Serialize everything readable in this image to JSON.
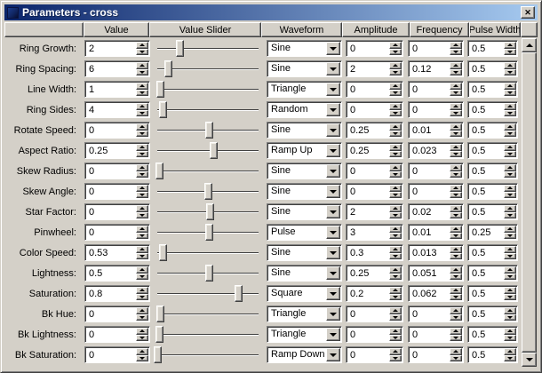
{
  "window": {
    "title": "Parameters - cross",
    "close_label": "✕"
  },
  "columns": [
    "",
    "Value",
    "Value Slider",
    "Waveform",
    "Amplitude",
    "Frequency",
    "Pulse Width",
    ""
  ],
  "rows": [
    {
      "label": "Ring Growth:",
      "value": "2",
      "slider_pct": 23,
      "waveform": "Sine",
      "amplitude": "0",
      "frequency": "0",
      "pulse_width": "0.5"
    },
    {
      "label": "Ring Spacing:",
      "value": "6",
      "slider_pct": 12,
      "waveform": "Sine",
      "amplitude": "2",
      "frequency": "0.12",
      "pulse_width": "0.5"
    },
    {
      "label": "Line Width:",
      "value": "1",
      "slider_pct": 4,
      "waveform": "Triangle",
      "amplitude": "0",
      "frequency": "0",
      "pulse_width": "0.5"
    },
    {
      "label": "Ring Sides:",
      "value": "4",
      "slider_pct": 7,
      "waveform": "Random",
      "amplitude": "0",
      "frequency": "0",
      "pulse_width": "0.5"
    },
    {
      "label": "Rotate Speed:",
      "value": "0",
      "slider_pct": 51,
      "waveform": "Sine",
      "amplitude": "0.25",
      "frequency": "0.01",
      "pulse_width": "0.5"
    },
    {
      "label": "Aspect Ratio:",
      "value": "0.25",
      "slider_pct": 55,
      "waveform": "Ramp Up",
      "amplitude": "0.25",
      "frequency": "0.023",
      "pulse_width": "0.5"
    },
    {
      "label": "Skew Radius:",
      "value": "0",
      "slider_pct": 3,
      "waveform": "Sine",
      "amplitude": "0",
      "frequency": "0",
      "pulse_width": "0.5"
    },
    {
      "label": "Skew Angle:",
      "value": "0",
      "slider_pct": 50,
      "waveform": "Sine",
      "amplitude": "0",
      "frequency": "0",
      "pulse_width": "0.5"
    },
    {
      "label": "Star Factor:",
      "value": "0",
      "slider_pct": 52,
      "waveform": "Sine",
      "amplitude": "2",
      "frequency": "0.02",
      "pulse_width": "0.5"
    },
    {
      "label": "Pinwheel:",
      "value": "0",
      "slider_pct": 51,
      "waveform": "Pulse",
      "amplitude": "3",
      "frequency": "0.01",
      "pulse_width": "0.25"
    },
    {
      "label": "Color Speed:",
      "value": "0.53",
      "slider_pct": 7,
      "waveform": "Sine",
      "amplitude": "0.3",
      "frequency": "0.013",
      "pulse_width": "0.5"
    },
    {
      "label": "Lightness:",
      "value": "0.5",
      "slider_pct": 51,
      "waveform": "Sine",
      "amplitude": "0.25",
      "frequency": "0.051",
      "pulse_width": "0.5"
    },
    {
      "label": "Saturation:",
      "value": "0.8",
      "slider_pct": 79,
      "waveform": "Square",
      "amplitude": "0.2",
      "frequency": "0.062",
      "pulse_width": "0.5"
    },
    {
      "label": "Bk Hue:",
      "value": "0",
      "slider_pct": 4,
      "waveform": "Triangle",
      "amplitude": "0",
      "frequency": "0",
      "pulse_width": "0.5"
    },
    {
      "label": "Bk Lightness:",
      "value": "0",
      "slider_pct": 3,
      "waveform": "Triangle",
      "amplitude": "0",
      "frequency": "0",
      "pulse_width": "0.5"
    },
    {
      "label": "Bk Saturation:",
      "value": "0",
      "slider_pct": 2,
      "waveform": "Ramp Down",
      "amplitude": "0",
      "frequency": "0",
      "pulse_width": "0.5"
    }
  ],
  "colors": {
    "titlebar_left": "#0a246a",
    "titlebar_right": "#a6caf0",
    "chrome": "#d4d0c8"
  }
}
